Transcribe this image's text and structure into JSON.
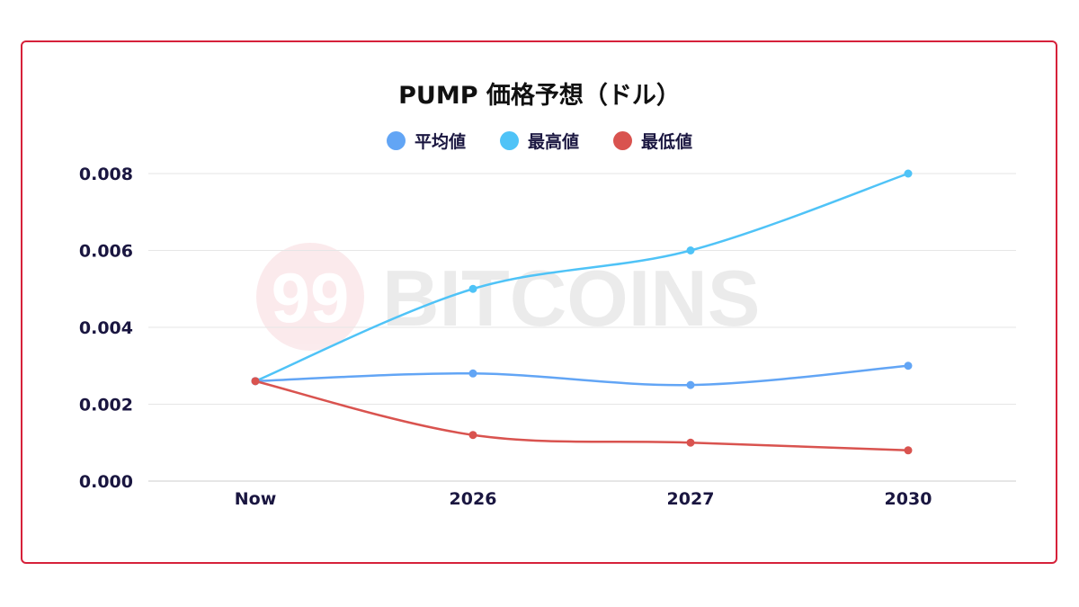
{
  "chart_data": {
    "type": "line",
    "title": "PUMP 価格予想（ドル）",
    "categories": [
      "Now",
      "2026",
      "2027",
      "2030"
    ],
    "series": [
      {
        "name": "平均値",
        "color": "#62a5f5",
        "values": [
          0.0026,
          0.0028,
          0.0025,
          0.003
        ]
      },
      {
        "name": "最高値",
        "color": "#4fc3f7",
        "values": [
          0.0026,
          0.005,
          0.006,
          0.008
        ]
      },
      {
        "name": "最低値",
        "color": "#d9534f",
        "values": [
          0.0026,
          0.0012,
          0.001,
          0.0008
        ]
      }
    ],
    "yticks": [
      "0.000",
      "0.002",
      "0.004",
      "0.006",
      "0.008"
    ],
    "ylim": [
      0,
      0.008
    ],
    "xlabel": "",
    "ylabel": "",
    "grid": true,
    "legend_position": "top",
    "smooth": true
  },
  "watermark": "99 BITCOINS",
  "frame_color": "#d6213a"
}
